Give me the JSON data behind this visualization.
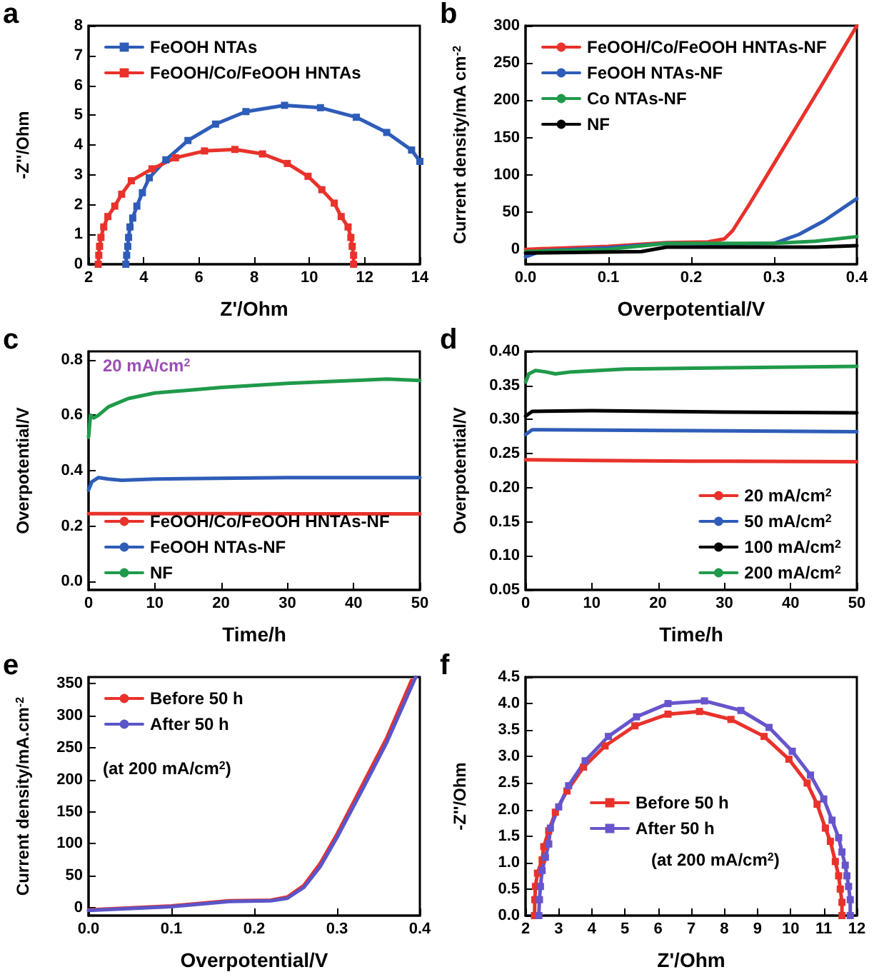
{
  "chart_data": [
    {
      "type": "line",
      "marker": "square",
      "line_style": "solid",
      "xlabel": "Z'/Ohm",
      "ylabel": "-Z''/Ohm",
      "legend": "top left",
      "annotations": [
        "a"
      ],
      "xlim": [
        2,
        14
      ],
      "xticks": [
        2,
        4,
        6,
        8,
        10,
        12,
        14
      ],
      "ylim": [
        0,
        8
      ],
      "yticks": [
        0,
        1,
        2,
        3,
        4,
        5,
        6,
        7,
        8
      ],
      "series": [
        {
          "name": "FeOOH NTAs",
          "color": "#2e5cb8",
          "x": [
            3.35,
            3.38,
            3.42,
            3.45,
            3.5,
            3.6,
            3.75,
            3.95,
            4.2,
            4.8,
            5.6,
            6.6,
            7.7,
            9.1,
            10.4,
            11.7,
            12.8,
            13.7,
            14
          ],
          "values": [
            0,
            0.3,
            0.6,
            0.9,
            1.25,
            1.55,
            1.95,
            2.4,
            2.9,
            3.5,
            4.15,
            4.7,
            5.12,
            5.33,
            5.25,
            4.93,
            4.42,
            3.83,
            3.45
          ]
        },
        {
          "name": "FeOOH/Co/FeOOH HNTAs",
          "color": "#e8322b",
          "x": [
            2.35,
            2.37,
            2.4,
            2.45,
            2.55,
            2.7,
            2.95,
            3.2,
            3.55,
            4.3,
            5.15,
            6.2,
            7.3,
            8.3,
            9.2,
            9.95,
            10.45,
            10.9,
            11.15,
            11.4,
            11.5,
            11.55,
            11.6,
            11.6
          ],
          "values": [
            0,
            0.3,
            0.6,
            0.9,
            1.25,
            1.6,
            1.95,
            2.35,
            2.8,
            3.2,
            3.57,
            3.8,
            3.85,
            3.7,
            3.38,
            2.95,
            2.5,
            2.05,
            1.6,
            1.25,
            0.9,
            0.6,
            0.3,
            0
          ]
        }
      ]
    },
    {
      "type": "line",
      "marker": "none",
      "line_style": "solid",
      "xlabel": "Overpotential/V",
      "ylabel": "Current density/mA cm$^{-2}$",
      "legend": "top left",
      "annotations": [
        "b"
      ],
      "xlim": [
        0,
        0.4
      ],
      "xticks": [
        {
          "value": 0,
          "label": "0.0"
        },
        0.1,
        0.2,
        0.3,
        0.4
      ],
      "ylim": [
        -20,
        300
      ],
      "yticks": [
        0,
        50,
        100,
        150,
        200,
        250,
        300
      ],
      "series": [
        {
          "name": "FeOOH/Co/FeOOH HNTAs-NF",
          "color": "#e8322b",
          "x": [
            0,
            0.1,
            0.17,
            0.22,
            0.24,
            0.25,
            0.27,
            0.3,
            0.33,
            0.36,
            0.4
          ],
          "values": [
            0,
            4,
            9,
            10,
            14,
            25,
            60,
            115,
            170,
            225,
            300
          ]
        },
        {
          "name": "FeOOH NTAs-NF",
          "color": "#2e5cb8",
          "x": [
            0,
            0.02,
            0.1,
            0.17,
            0.25,
            0.3,
            0.33,
            0.36,
            0.4
          ],
          "values": [
            -10,
            -2,
            2,
            8,
            7,
            8,
            20,
            38,
            68
          ]
        },
        {
          "name": "Co NTAs-NF",
          "color": "#1f9a4a",
          "x": [
            0,
            0.1,
            0.17,
            0.3,
            0.35,
            0.4
          ],
          "values": [
            -3,
            0,
            8,
            8,
            11,
            17
          ]
        },
        {
          "name": "NF",
          "color": "#000000",
          "x": [
            0,
            0.14,
            0.17,
            0.3,
            0.35,
            0.4
          ],
          "values": [
            -5,
            -3,
            3,
            3,
            3,
            5
          ]
        }
      ]
    },
    {
      "type": "line",
      "marker": "none",
      "line_style": "solid",
      "xlabel": "Time/h",
      "ylabel": "Overpotential/V",
      "legend": "bottom left",
      "annotations": [
        "c",
        "20 mA/cm$^{2}$"
      ],
      "xlim": [
        0,
        50
      ],
      "xticks": [
        0,
        10,
        20,
        30,
        40,
        50
      ],
      "ylim": [
        -0.03,
        0.83
      ],
      "yticks": [
        {
          "value": 0,
          "label": "0.0"
        },
        0.2,
        0.4,
        0.6,
        0.8
      ],
      "series": [
        {
          "name": "FeOOH/Co/FeOOH HNTAs-NF",
          "color": "#e8322b",
          "x": [
            0,
            10,
            20,
            30,
            40,
            50
          ],
          "values": [
            0.245,
            0.245,
            0.245,
            0.244,
            0.244,
            0.244
          ]
        },
        {
          "name": "FeOOH NTAs-NF",
          "color": "#2e5cb8",
          "x": [
            0,
            0.5,
            1.5,
            3,
            5,
            10,
            30,
            50
          ],
          "values": [
            0.33,
            0.36,
            0.375,
            0.37,
            0.365,
            0.37,
            0.375,
            0.375
          ]
        },
        {
          "name": "NF",
          "color": "#1f9a4a",
          "x": [
            0,
            0.3,
            0.8,
            1.5,
            3,
            6,
            10,
            20,
            30,
            40,
            45,
            50
          ],
          "values": [
            0.52,
            0.6,
            0.59,
            0.6,
            0.63,
            0.66,
            0.68,
            0.7,
            0.715,
            0.725,
            0.73,
            0.725
          ]
        }
      ]
    },
    {
      "type": "line",
      "marker": "none",
      "line_style": "solid",
      "xlabel": "Time/h",
      "ylabel": "Overpotential/V",
      "legend": "bottom right",
      "annotations": [
        "d"
      ],
      "xlim": [
        0,
        50
      ],
      "xticks": [
        0,
        10,
        20,
        30,
        40,
        50
      ],
      "ylim": [
        0.05,
        0.4
      ],
      "yticks": [
        0.05,
        {
          "value": 0.1,
          "label": "0.10"
        },
        0.15,
        {
          "value": 0.2,
          "label": "0.20"
        },
        0.25,
        {
          "value": 0.3,
          "label": "0.30"
        },
        0.35,
        {
          "value": 0.4,
          "label": "0.40"
        }
      ],
      "series": [
        {
          "name": "20 mA/cm$^{2}$",
          "color": "#e8322b",
          "x": [
            0,
            10,
            25,
            50
          ],
          "values": [
            0.241,
            0.24,
            0.239,
            0.238
          ]
        },
        {
          "name": "50 mA/cm$^{2}$",
          "color": "#2e5cb8",
          "x": [
            0,
            1,
            20,
            50
          ],
          "values": [
            0.278,
            0.285,
            0.284,
            0.282
          ]
        },
        {
          "name": "100 mA/cm$^{2}$",
          "color": "#000000",
          "x": [
            0,
            1,
            10,
            30,
            50
          ],
          "values": [
            0.305,
            0.312,
            0.313,
            0.311,
            0.31
          ]
        },
        {
          "name": "200 mA/cm$^{2}$",
          "color": "#1f9a4a",
          "x": [
            0,
            0.5,
            1.5,
            3,
            4.5,
            7,
            15,
            30,
            50
          ],
          "values": [
            0.355,
            0.367,
            0.372,
            0.37,
            0.367,
            0.37,
            0.374,
            0.376,
            0.378
          ]
        }
      ]
    },
    {
      "type": "line",
      "marker": "none",
      "line_style": "solid",
      "xlabel": "Overpotential/V",
      "ylabel": "Current density/mA.cm$^{-2}$",
      "legend": "top left",
      "annotations": [
        "e",
        "(at 200 mA/cm$^{2}$)"
      ],
      "xlim": [
        0,
        0.4
      ],
      "xticks": [
        {
          "value": 0,
          "label": "0.0"
        },
        0.1,
        0.2,
        0.3,
        0.4
      ],
      "ylim": [
        -12,
        360
      ],
      "yticks": [
        0,
        50,
        100,
        150,
        200,
        250,
        300,
        350
      ],
      "series": [
        {
          "name": "Before 50 h",
          "color": "#e8322b",
          "x": [
            0,
            0.1,
            0.17,
            0.22,
            0.24,
            0.26,
            0.28,
            0.3,
            0.33,
            0.36,
            0.39
          ],
          "values": [
            -3,
            3,
            11,
            12,
            17,
            35,
            70,
            115,
            190,
            265,
            355
          ]
        },
        {
          "name": "After 50 h",
          "color": "#5a55c8",
          "x": [
            0,
            0.1,
            0.17,
            0.22,
            0.24,
            0.26,
            0.28,
            0.3,
            0.33,
            0.36,
            0.395
          ],
          "values": [
            -4,
            2,
            10,
            11,
            15,
            32,
            65,
            110,
            183,
            258,
            360
          ]
        }
      ]
    },
    {
      "type": "line",
      "marker": "square",
      "line_style": "solid",
      "xlabel": "Z'/Ohm",
      "ylabel": "-Z''/Ohm",
      "legend": "left",
      "annotations": [
        "f",
        "(at 200 mA/cm$^{2}$)"
      ],
      "xlim": [
        2,
        12
      ],
      "xticks": [
        2,
        3,
        4,
        5,
        6,
        7,
        8,
        9,
        10,
        11,
        12
      ],
      "ylim": [
        0,
        4.5
      ],
      "yticks": [
        {
          "value": 0,
          "label": "0.0"
        },
        0.5,
        {
          "value": 1,
          "label": "1.0"
        },
        1.5,
        {
          "value": 2,
          "label": "2.0"
        },
        2.5,
        {
          "value": 3,
          "label": "3.0"
        },
        3.5,
        {
          "value": 4,
          "label": "4.0"
        },
        4.5
      ],
      "series": [
        {
          "name": "Before 50 h",
          "color": "#e8322b",
          "x": [
            2.27,
            2.28,
            2.3,
            2.36,
            2.5,
            2.55,
            2.7,
            2.9,
            3.25,
            3.75,
            4.4,
            5.3,
            6.3,
            7.25,
            8.2,
            9.2,
            9.95,
            10.5,
            10.8,
            11.05,
            11.2,
            11.35,
            11.45,
            11.5,
            11.55,
            11.55
          ],
          "values": [
            0,
            0.3,
            0.55,
            0.8,
            1.05,
            1.3,
            1.6,
            1.95,
            2.35,
            2.8,
            3.2,
            3.58,
            3.8,
            3.85,
            3.7,
            3.38,
            2.95,
            2.5,
            2.1,
            1.65,
            1.4,
            1.02,
            0.75,
            0.5,
            0.25,
            0
          ]
        },
        {
          "name": "After 50 h",
          "color": "#6655cc",
          "x": [
            2.4,
            2.42,
            2.45,
            2.5,
            2.6,
            2.7,
            2.75,
            3.0,
            3.3,
            3.8,
            4.5,
            5.35,
            6.3,
            7.4,
            8.5,
            9.35,
            10.05,
            10.6,
            11.0,
            11.25,
            11.45,
            11.55,
            11.65,
            11.7,
            11.75,
            11.8,
            11.8
          ],
          "values": [
            0,
            0.3,
            0.55,
            0.85,
            1.1,
            1.35,
            1.65,
            2.05,
            2.45,
            2.92,
            3.38,
            3.75,
            4.0,
            4.05,
            3.87,
            3.55,
            3.1,
            2.65,
            2.2,
            1.8,
            1.47,
            1.2,
            0.95,
            0.75,
            0.55,
            0.3,
            0
          ]
        }
      ]
    }
  ]
}
